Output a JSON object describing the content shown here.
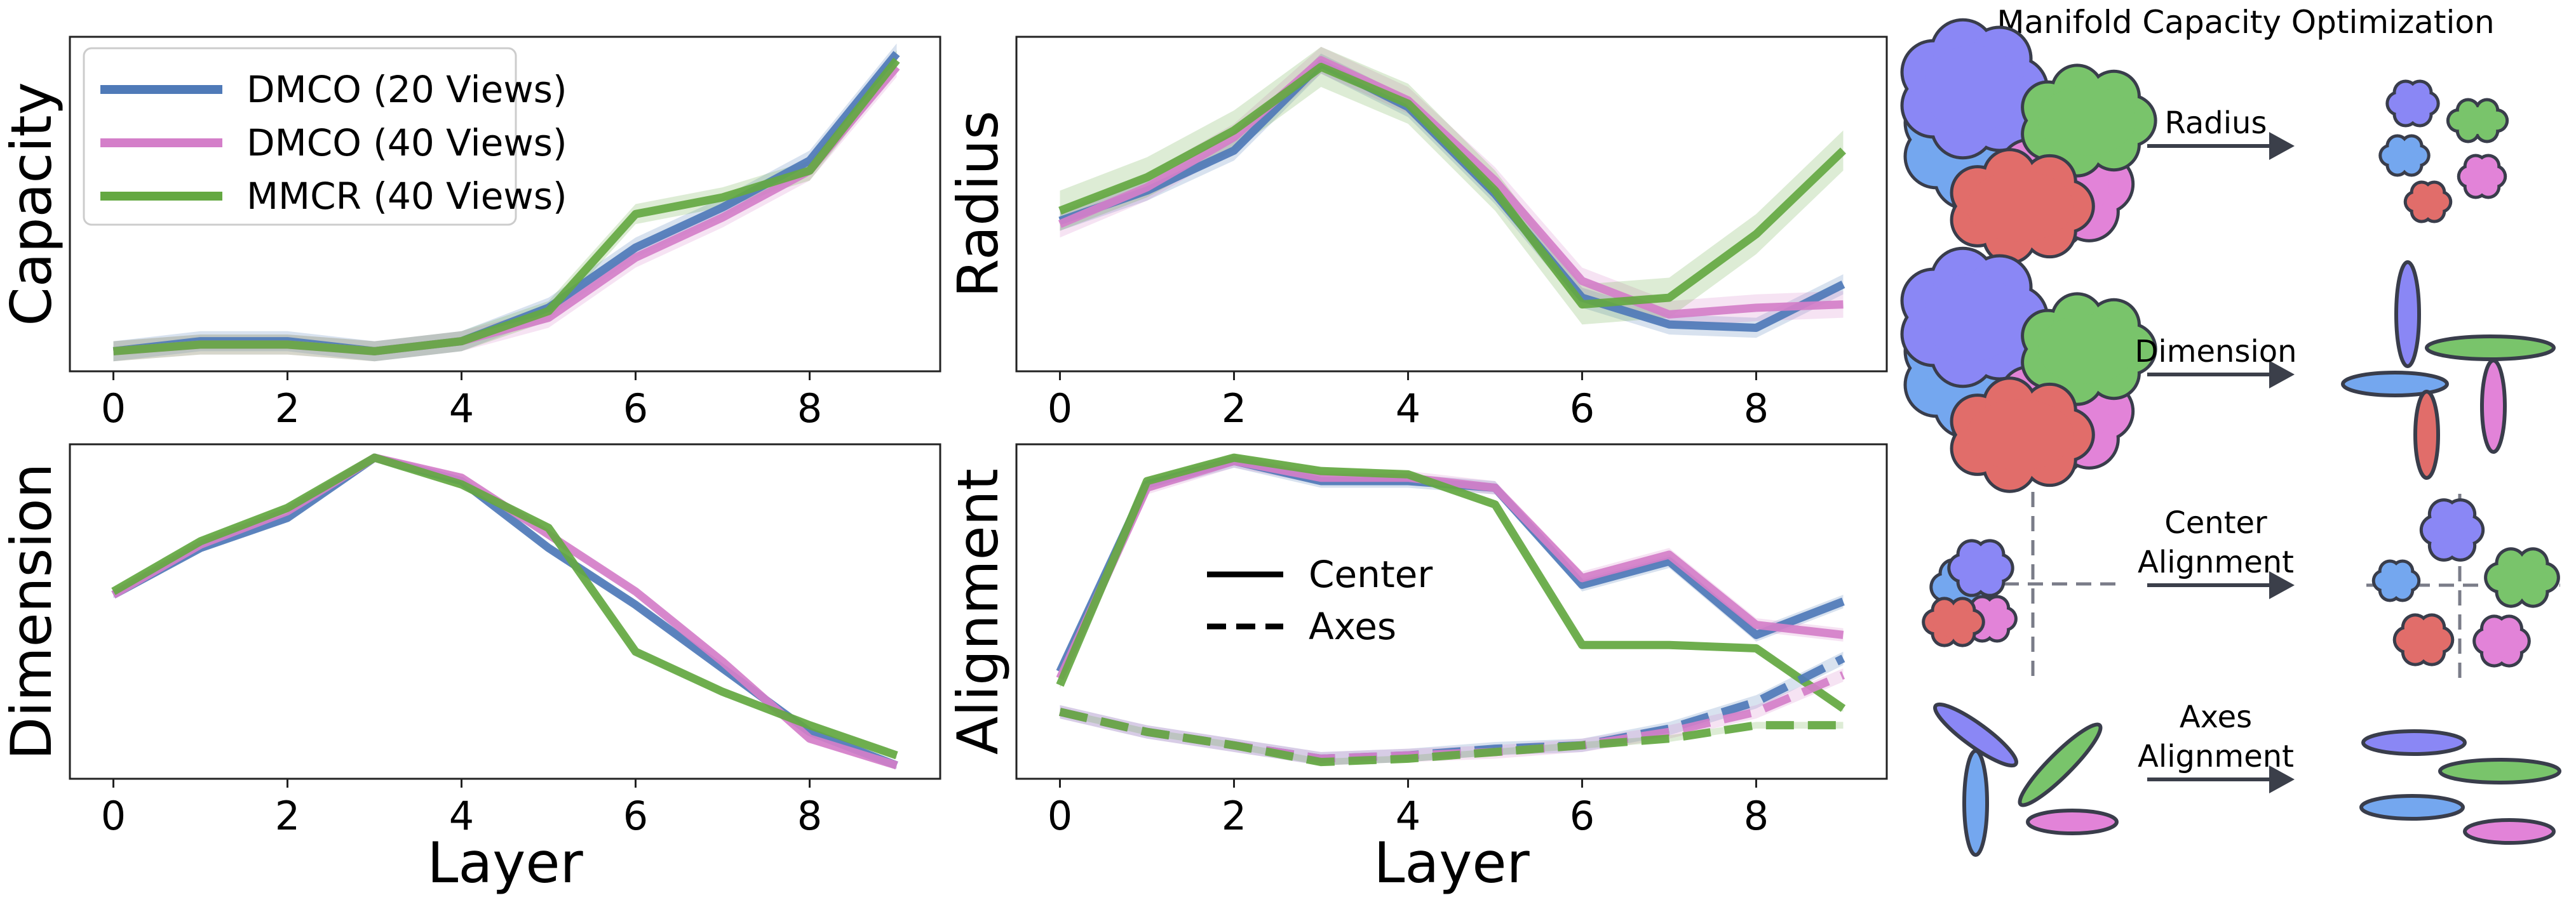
{
  "colors": {
    "dmco20": "#4f7ab8",
    "dmco40": "#d47fc9",
    "mmcr40": "#64a842",
    "blob_purple": "#8a87f5",
    "blob_blue": "#74a7ef",
    "blob_green": "#79c46b",
    "blob_pink": "#e283d8",
    "blob_red": "#e16d6a",
    "blob_stroke": "#393d4b",
    "arrow": "#3b3f4a",
    "dashed_axis": "#7a7c88"
  },
  "chart_data": [
    {
      "id": "capacity",
      "type": "line",
      "ylabel": "Capacity",
      "xlabel": "",
      "x": [
        0,
        1,
        2,
        3,
        4,
        5,
        6,
        7,
        8,
        9
      ],
      "x_ticks": [
        "0",
        "2",
        "4",
        "6",
        "8"
      ],
      "ylim": [
        0,
        1
      ],
      "legend_location": "upper left",
      "series": [
        {
          "name": "DMCO (20 Views)",
          "color_key": "dmco20",
          "values": [
            0.06,
            0.09,
            0.09,
            0.06,
            0.09,
            0.19,
            0.37,
            0.49,
            0.63,
            0.95
          ],
          "band": 0.03
        },
        {
          "name": "DMCO (40 Views)",
          "color_key": "dmco40",
          "values": [
            0.06,
            0.08,
            0.08,
            0.06,
            0.09,
            0.16,
            0.34,
            0.46,
            0.6,
            0.91
          ],
          "band": 0.03
        },
        {
          "name": "MMCR (40 Views)",
          "color_key": "mmcr40",
          "values": [
            0.06,
            0.08,
            0.08,
            0.06,
            0.09,
            0.18,
            0.47,
            0.52,
            0.6,
            0.93
          ],
          "band": 0.03
        }
      ]
    },
    {
      "id": "radius",
      "type": "line",
      "ylabel": "Radius",
      "xlabel": "",
      "x": [
        0,
        1,
        2,
        3,
        4,
        5,
        6,
        7,
        8,
        9
      ],
      "x_ticks": [
        "0",
        "2",
        "4",
        "6",
        "8"
      ],
      "ylim": [
        0,
        1
      ],
      "series": [
        {
          "color_key": "dmco20",
          "values": [
            0.45,
            0.54,
            0.66,
            0.92,
            0.79,
            0.53,
            0.22,
            0.14,
            0.13,
            0.26
          ],
          "band": 0.03
        },
        {
          "color_key": "dmco40",
          "values": [
            0.44,
            0.55,
            0.7,
            0.93,
            0.81,
            0.57,
            0.27,
            0.17,
            0.19,
            0.2
          ],
          "band": 0.04
        },
        {
          "color_key": "mmcr40",
          "values": [
            0.48,
            0.58,
            0.72,
            0.91,
            0.8,
            0.54,
            0.2,
            0.22,
            0.41,
            0.66
          ],
          "band": 0.06
        }
      ]
    },
    {
      "id": "dimension",
      "type": "line",
      "ylabel": "Dimension",
      "xlabel": "Layer",
      "x": [
        0,
        1,
        2,
        3,
        4,
        5,
        6,
        7,
        8,
        9
      ],
      "x_ticks": [
        "0",
        "2",
        "4",
        "6",
        "8"
      ],
      "ylim": [
        0,
        1
      ],
      "series": [
        {
          "color_key": "dmco20",
          "values": [
            0.55,
            0.69,
            0.78,
            0.96,
            0.89,
            0.69,
            0.52,
            0.33,
            0.14,
            0.04
          ],
          "band": 0.01
        },
        {
          "color_key": "dmco40",
          "values": [
            0.55,
            0.7,
            0.8,
            0.96,
            0.9,
            0.73,
            0.56,
            0.35,
            0.12,
            0.04
          ],
          "band": 0.01
        },
        {
          "color_key": "mmcr40",
          "values": [
            0.56,
            0.71,
            0.81,
            0.96,
            0.88,
            0.75,
            0.38,
            0.26,
            0.16,
            0.07
          ],
          "band": 0.01
        }
      ]
    },
    {
      "id": "alignment",
      "type": "line",
      "ylabel": "Alignment",
      "xlabel": "Layer",
      "x": [
        0,
        1,
        2,
        3,
        4,
        5,
        6,
        7,
        8,
        9
      ],
      "x_ticks": [
        "0",
        "2",
        "4",
        "6",
        "8"
      ],
      "ylim": [
        0,
        1
      ],
      "style_legend": [
        {
          "label": "Center",
          "dash": "solid"
        },
        {
          "label": "Axes",
          "dash": "dashed"
        }
      ],
      "series": [
        {
          "color_key": "dmco20",
          "style": "solid",
          "values": [
            0.32,
            0.88,
            0.95,
            0.89,
            0.89,
            0.87,
            0.58,
            0.65,
            0.43,
            0.53
          ],
          "band": 0.02
        },
        {
          "color_key": "dmco40",
          "style": "solid",
          "values": [
            0.3,
            0.87,
            0.95,
            0.9,
            0.9,
            0.87,
            0.6,
            0.67,
            0.46,
            0.43
          ],
          "band": 0.02
        },
        {
          "color_key": "mmcr40",
          "style": "solid",
          "values": [
            0.28,
            0.89,
            0.96,
            0.92,
            0.91,
            0.82,
            0.4,
            0.4,
            0.39,
            0.21
          ],
          "band": 0.01
        },
        {
          "color_key": "dmco20",
          "style": "dashed",
          "values": [
            0.2,
            0.14,
            0.1,
            0.06,
            0.07,
            0.09,
            0.1,
            0.15,
            0.23,
            0.36
          ],
          "band": 0.02
        },
        {
          "color_key": "dmco40",
          "style": "dashed",
          "values": [
            0.2,
            0.14,
            0.1,
            0.06,
            0.07,
            0.08,
            0.1,
            0.14,
            0.2,
            0.31
          ],
          "band": 0.02
        },
        {
          "color_key": "mmcr40",
          "style": "dashed",
          "values": [
            0.2,
            0.14,
            0.1,
            0.05,
            0.06,
            0.08,
            0.1,
            0.12,
            0.16,
            0.16
          ],
          "band": 0.01
        }
      ]
    }
  ],
  "diagram": {
    "title": "Manifold Capacity Optimization",
    "rows": [
      {
        "id": "radius",
        "label_lines": [
          "Radius"
        ]
      },
      {
        "id": "dimension",
        "label_lines": [
          "Dimension"
        ]
      },
      {
        "id": "center",
        "label_lines": [
          "Center",
          "Alignment"
        ]
      },
      {
        "id": "axes",
        "label_lines": [
          "Axes",
          "Alignment"
        ]
      }
    ]
  }
}
